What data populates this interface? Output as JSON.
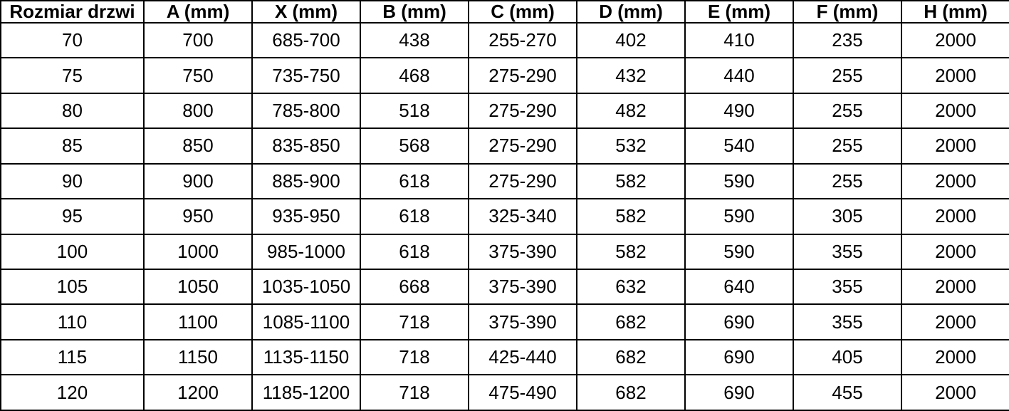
{
  "table": {
    "name": "door-size-specification",
    "columns": [
      "Rozmiar drzwi",
      "A (mm)",
      "X (mm)",
      "B (mm)",
      "C (mm)",
      "D (mm)",
      "E (mm)",
      "F (mm)",
      "H (mm)"
    ],
    "rows": [
      [
        "70",
        "700",
        "685-700",
        "438",
        "255-270",
        "402",
        "410",
        "235",
        "2000"
      ],
      [
        "75",
        "750",
        "735-750",
        "468",
        "275-290",
        "432",
        "440",
        "255",
        "2000"
      ],
      [
        "80",
        "800",
        "785-800",
        "518",
        "275-290",
        "482",
        "490",
        "255",
        "2000"
      ],
      [
        "85",
        "850",
        "835-850",
        "568",
        "275-290",
        "532",
        "540",
        "255",
        "2000"
      ],
      [
        "90",
        "900",
        "885-900",
        "618",
        "275-290",
        "582",
        "590",
        "255",
        "2000"
      ],
      [
        "95",
        "950",
        "935-950",
        "618",
        "325-340",
        "582",
        "590",
        "305",
        "2000"
      ],
      [
        "100",
        "1000",
        "985-1000",
        "618",
        "375-390",
        "582",
        "590",
        "355",
        "2000"
      ],
      [
        "105",
        "1050",
        "1035-1050",
        "668",
        "375-390",
        "632",
        "640",
        "355",
        "2000"
      ],
      [
        "110",
        "1100",
        "1085-1100",
        "718",
        "375-390",
        "682",
        "690",
        "355",
        "2000"
      ],
      [
        "115",
        "1150",
        "1135-1150",
        "718",
        "425-440",
        "682",
        "690",
        "405",
        "2000"
      ],
      [
        "120",
        "1200",
        "1185-1200",
        "718",
        "475-490",
        "682",
        "690",
        "455",
        "2000"
      ]
    ],
    "border_color": "#000000",
    "text_color": "#000000",
    "background_color": "#ffffff"
  }
}
